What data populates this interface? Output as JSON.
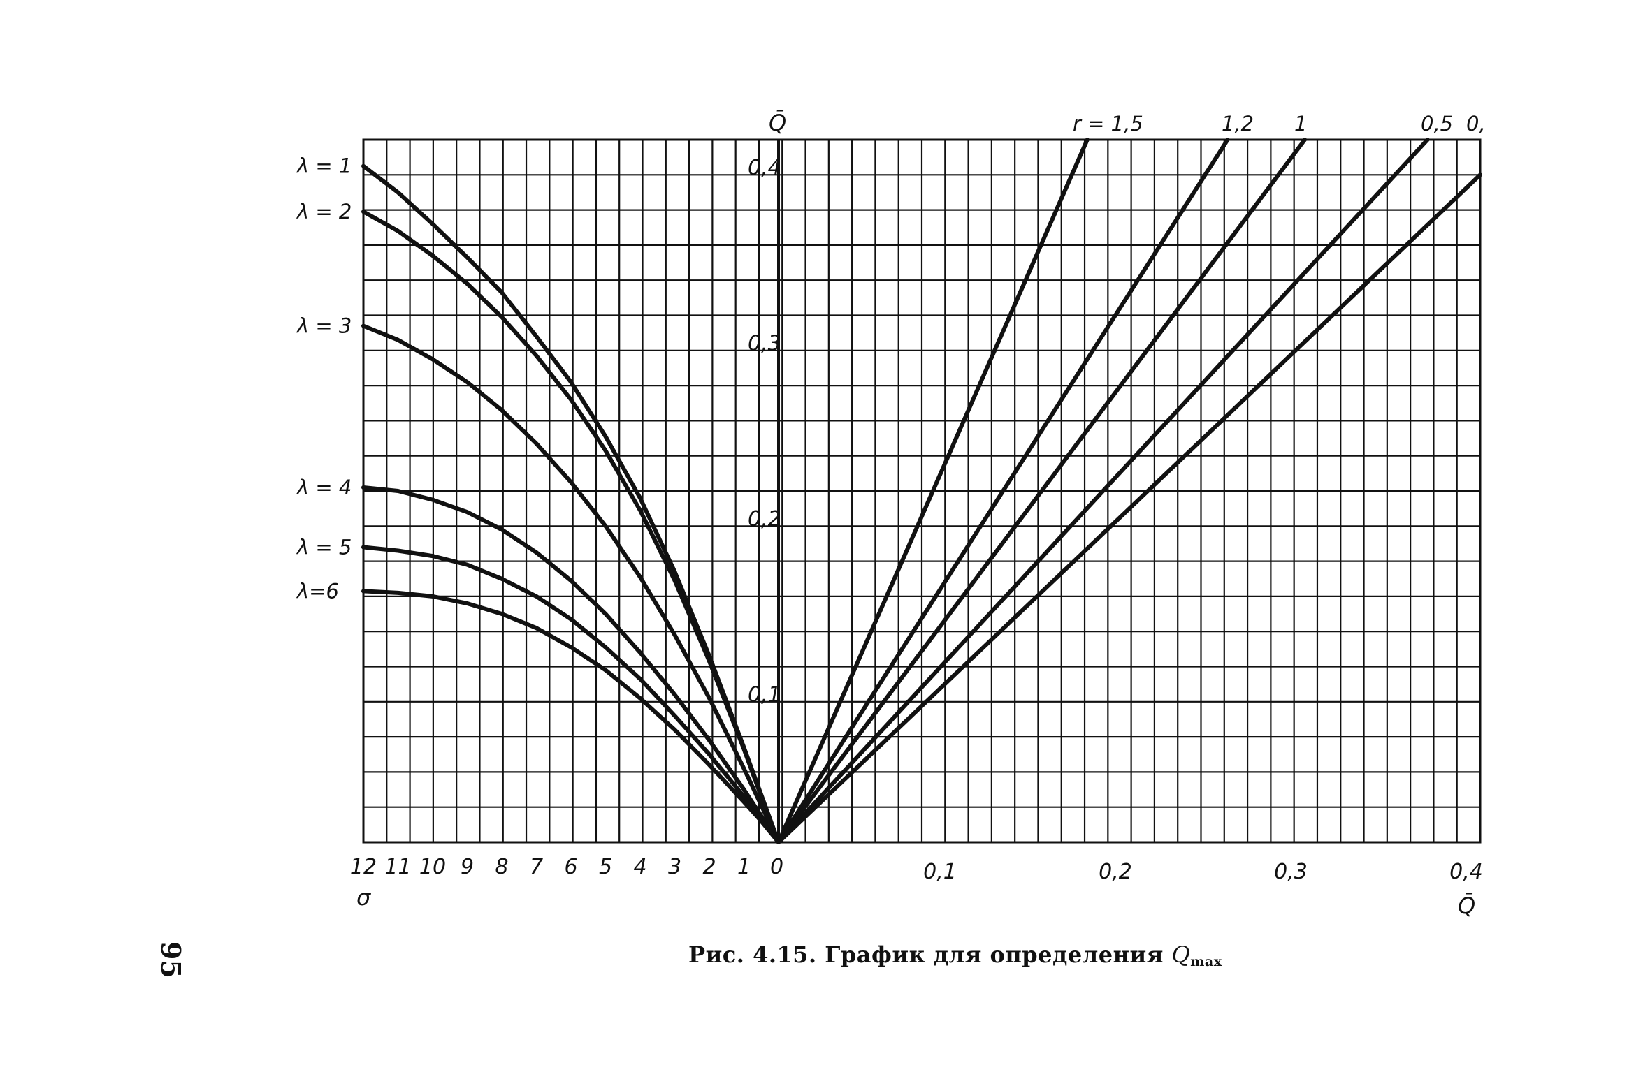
{
  "caption": {
    "text": "Рис. 4.15. График для определения ",
    "symbol": "Q",
    "subscript": "max"
  },
  "page_number": "95",
  "chart_data": [
    {
      "type": "line",
      "panel": "left",
      "x_label": "σ",
      "y_label": "Q̄",
      "x_ticks": [
        "12",
        "11",
        "10",
        "9",
        "8",
        "7",
        "6",
        "5",
        "4",
        "3",
        "2",
        "1",
        "0"
      ],
      "y_ticks": [
        "0,1",
        "0,2",
        "0,3",
        "0,4"
      ],
      "xlim": [
        12,
        0
      ],
      "ylim": [
        0,
        0.4
      ],
      "grid": true,
      "series": [
        {
          "name": "λ = 1",
          "x": [
            12,
            11,
            10,
            9,
            8,
            7,
            6,
            5,
            4,
            3,
            2,
            1,
            0.5,
            0
          ],
          "y": [
            0.385,
            0.37,
            0.352,
            0.333,
            0.313,
            0.288,
            0.262,
            0.231,
            0.196,
            0.154,
            0.106,
            0.054,
            0.027,
            0
          ]
        },
        {
          "name": "λ = 2",
          "x": [
            12,
            11,
            10,
            9,
            8,
            7,
            6,
            5,
            4,
            3,
            2,
            1,
            0.5,
            0
          ],
          "y": [
            0.359,
            0.348,
            0.334,
            0.318,
            0.299,
            0.277,
            0.252,
            0.223,
            0.189,
            0.149,
            0.103,
            0.053,
            0.026,
            0
          ]
        },
        {
          "name": "λ = 3",
          "x": [
            12,
            11,
            10,
            9,
            8,
            7,
            6,
            5,
            4,
            3,
            2,
            1,
            0.5,
            0
          ],
          "y": [
            0.294,
            0.286,
            0.275,
            0.262,
            0.246,
            0.227,
            0.205,
            0.18,
            0.151,
            0.118,
            0.082,
            0.042,
            0.021,
            0
          ]
        },
        {
          "name": "λ = 4",
          "x": [
            12,
            11,
            10,
            9,
            8,
            7,
            6,
            5,
            4,
            3,
            2,
            1,
            0.5,
            0
          ],
          "y": [
            0.202,
            0.2,
            0.195,
            0.188,
            0.178,
            0.165,
            0.149,
            0.13,
            0.108,
            0.084,
            0.058,
            0.03,
            0.015,
            0
          ]
        },
        {
          "name": "λ = 5",
          "x": [
            12,
            11,
            10,
            9,
            8,
            7,
            6,
            5,
            4,
            3,
            2,
            1,
            0.5,
            0
          ],
          "y": [
            0.168,
            0.166,
            0.163,
            0.158,
            0.15,
            0.14,
            0.127,
            0.111,
            0.093,
            0.072,
            0.05,
            0.026,
            0.013,
            0
          ]
        },
        {
          "name": "λ=6",
          "x": [
            12,
            11,
            10,
            9,
            8,
            7,
            6,
            5,
            4,
            3,
            2,
            1,
            0.5,
            0
          ],
          "y": [
            0.143,
            0.142,
            0.14,
            0.136,
            0.13,
            0.122,
            0.111,
            0.098,
            0.082,
            0.064,
            0.044,
            0.023,
            0.012,
            0
          ]
        }
      ],
      "series_labels": [
        "λ = 1",
        "λ = 2",
        "λ = 3",
        "λ = 4",
        "λ = 5",
        "λ=6"
      ]
    },
    {
      "type": "line",
      "panel": "right",
      "x_label": "Q̄",
      "y_label": "Q̄",
      "x_ticks": [
        "0,1",
        "0,2",
        "0,3",
        "0,4"
      ],
      "xlim": [
        0,
        0.4
      ],
      "ylim": [
        0,
        0.4
      ],
      "grid": true,
      "series": [
        {
          "name": "r = 1,5",
          "x": [
            0,
            0.176
          ],
          "y": [
            0,
            0.4
          ]
        },
        {
          "name": "1,2",
          "x": [
            0,
            0.256
          ],
          "y": [
            0,
            0.4
          ]
        },
        {
          "name": "1",
          "x": [
            0,
            0.3
          ],
          "y": [
            0,
            0.4
          ]
        },
        {
          "name": "0,5",
          "x": [
            0,
            0.37
          ],
          "y": [
            0,
            0.4
          ]
        },
        {
          "name": "0,",
          "x": [
            0,
            0.4
          ],
          "y": [
            0,
            0.38
          ]
        }
      ],
      "series_labels": [
        "r = 1,5",
        "1,2",
        "1",
        "0,5",
        "0,"
      ]
    }
  ],
  "axis_zero_label": "0"
}
